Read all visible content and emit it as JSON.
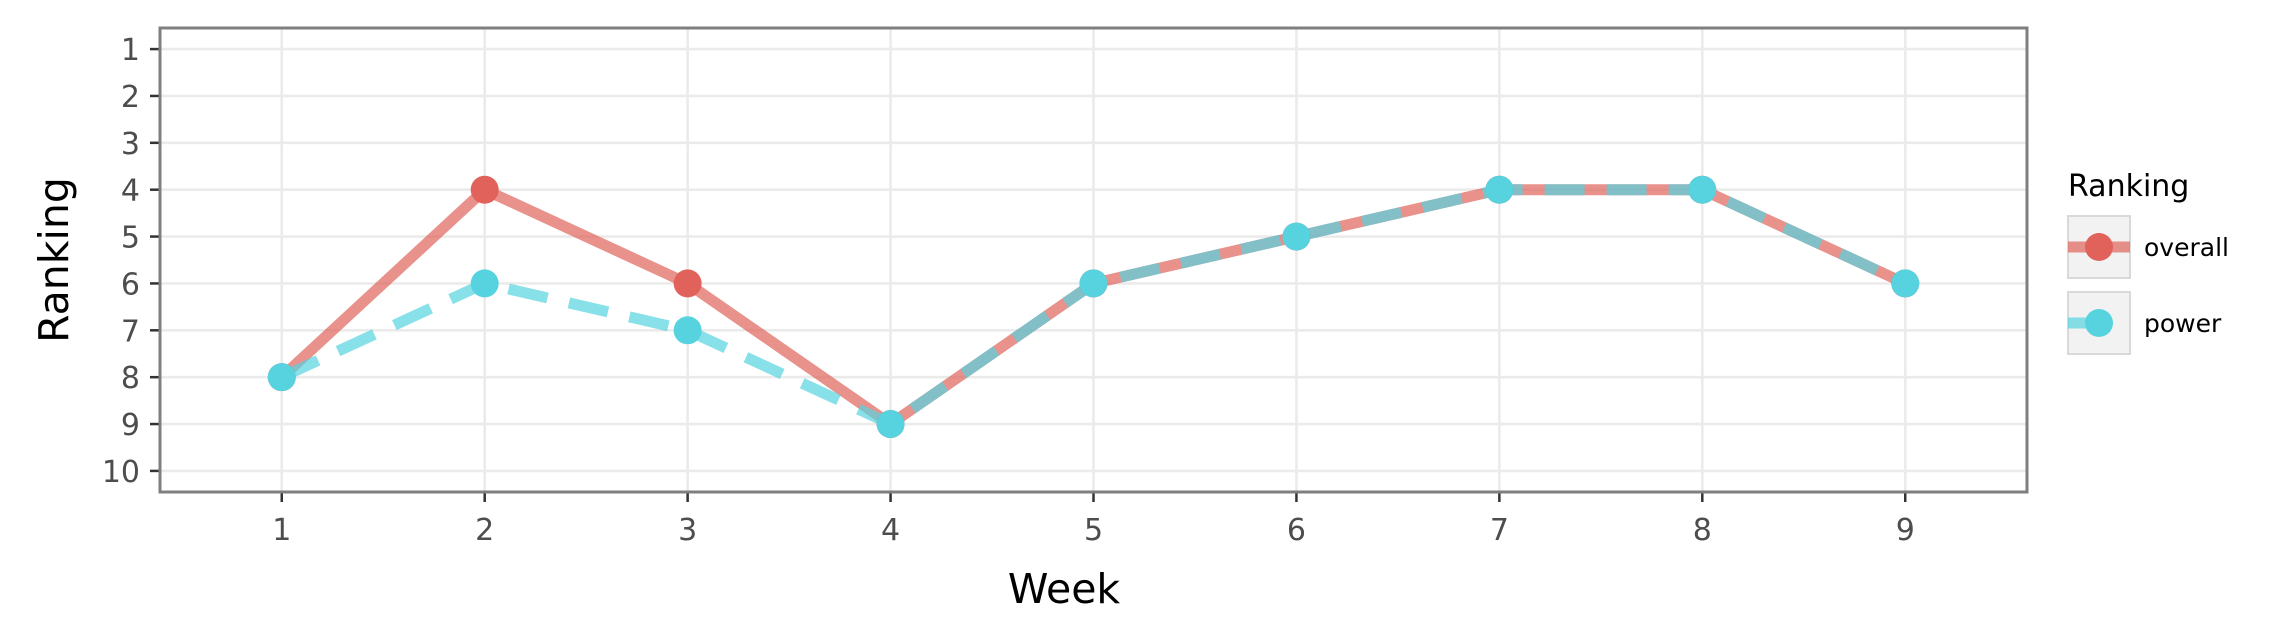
{
  "chart_data": {
    "type": "line",
    "xlabel": "Week",
    "ylabel": "Ranking",
    "x": [
      1,
      2,
      3,
      4,
      5,
      6,
      7,
      8,
      9
    ],
    "x_ticks": [
      "1",
      "2",
      "3",
      "4",
      "5",
      "6",
      "7",
      "8",
      "9"
    ],
    "y_ticks": [
      "1",
      "2",
      "3",
      "4",
      "5",
      "6",
      "7",
      "8",
      "9",
      "10"
    ],
    "xlim": [
      0.4,
      9.6
    ],
    "ylim": [
      10.45,
      0.55
    ],
    "y_reversed": true,
    "grid": true,
    "legend": {
      "title": "Ranking",
      "placement": "right"
    },
    "series": [
      {
        "name": "overall",
        "values": [
          8,
          4,
          6,
          9,
          6,
          5,
          4,
          4,
          6
        ],
        "color": "#e0625a",
        "line_style": "solid"
      },
      {
        "name": "power",
        "values": [
          8,
          6,
          7,
          9,
          6,
          5,
          4,
          4,
          6
        ],
        "color": "#56d3df",
        "line_style": "dashed"
      }
    ]
  }
}
